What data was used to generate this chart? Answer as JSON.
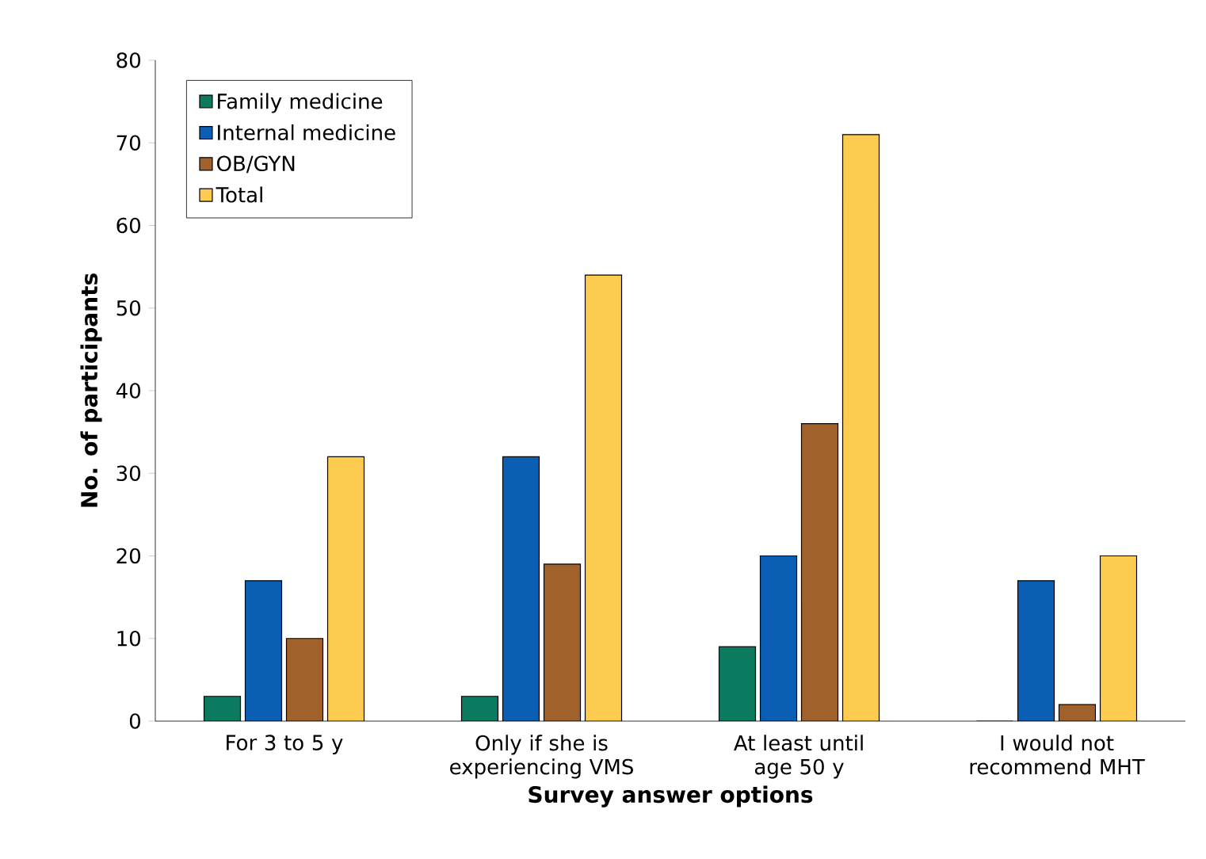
{
  "chart_data": {
    "type": "bar",
    "xlabel": "Survey answer options",
    "ylabel": "No. of participants",
    "categories": [
      "For 3 to 5 y",
      "Only if she is experiencing VMS",
      "At least until age 50 y",
      "I would not recommend MHT"
    ],
    "series": [
      {
        "name": "Family medicine",
        "color": "#0b7a5e",
        "values": [
          3,
          3,
          9,
          0
        ]
      },
      {
        "name": "Internal medicine",
        "color": "#0a5fb4",
        "values": [
          17,
          32,
          20,
          17
        ]
      },
      {
        "name": "OB/GYN",
        "color": "#a0612a",
        "values": [
          10,
          19,
          36,
          2
        ]
      },
      {
        "name": "Total",
        "color": "#fdcb4f",
        "values": [
          32,
          54,
          71,
          20
        ]
      }
    ],
    "ylim": [
      0,
      80
    ],
    "yticks": [
      0,
      10,
      20,
      30,
      40,
      50,
      60,
      70,
      80
    ],
    "grid": false,
    "legend": "top left"
  }
}
